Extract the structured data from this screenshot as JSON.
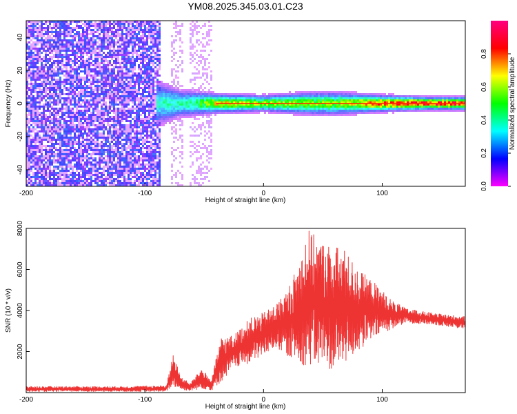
{
  "figure": {
    "title": "YM08.2025.345.03.01.C23"
  },
  "chart_data": [
    {
      "type": "heatmap",
      "title": "",
      "xlabel": "Height of straight line (km)",
      "ylabel": "Frequency (Hz)",
      "xlim": [
        -200,
        170
      ],
      "ylim": [
        -50,
        50
      ],
      "xticks": [
        -200,
        -100,
        0,
        100
      ],
      "yticks": [
        -40,
        -20,
        0,
        20,
        40
      ],
      "colorbar": {
        "label": "Normalized spectral amplitude",
        "range": [
          0,
          1
        ],
        "ticks": [
          0.0,
          0.2,
          0.4,
          0.6,
          0.8
        ],
        "colors": [
          "#ff00ff",
          "#0000ff",
          "#00ffff",
          "#00ff00",
          "#ffff00",
          "#ff0000",
          "#ff0080"
        ]
      },
      "regions": [
        {
          "x_range": [
            -200,
            -86
          ],
          "y_range": [
            -50,
            50
          ],
          "level": 0.15
        },
        {
          "x_range": [
            -78,
            -68
          ],
          "y_range": [
            -50,
            50
          ],
          "level": 0.06
        },
        {
          "x_range": [
            -62,
            -44
          ],
          "y_range": [
            -50,
            50
          ],
          "level": 0.05
        },
        {
          "x_range": [
            -88,
            -78
          ],
          "y_range": [
            -12,
            8
          ],
          "level": 0.35
        },
        {
          "x_range": [
            -40,
            170
          ],
          "y_range": [
            -1,
            1
          ],
          "level": 0.95
        }
      ],
      "ridge_halfwidth_hz": [
        {
          "x": -88,
          "halfwidth": 14
        },
        {
          "x": -70,
          "halfwidth": 9
        },
        {
          "x": -40,
          "halfwidth": 6
        },
        {
          "x": 0,
          "halfwidth": 5
        },
        {
          "x": 40,
          "halfwidth": 7
        },
        {
          "x": 60,
          "halfwidth": 7
        },
        {
          "x": 100,
          "halfwidth": 5
        },
        {
          "x": 140,
          "halfwidth": 4
        },
        {
          "x": 170,
          "halfwidth": 4
        }
      ],
      "ridge_peak_amplitude": [
        {
          "x": -88,
          "value": 0.4
        },
        {
          "x": -60,
          "value": 0.45
        },
        {
          "x": -40,
          "value": 0.7
        },
        {
          "x": 0,
          "value": 0.65
        },
        {
          "x": 60,
          "value": 0.6
        },
        {
          "x": 100,
          "value": 0.85
        },
        {
          "x": 170,
          "value": 0.95
        }
      ]
    },
    {
      "type": "area",
      "title": "",
      "xlabel": "Height of straight line (km)",
      "ylabel": "SNR (10 * v/v)",
      "xlim": [
        -200,
        170
      ],
      "ylim": [
        0,
        8000
      ],
      "xticks": [
        -200,
        -100,
        0,
        100
      ],
      "yticks": [
        2000,
        4000,
        6000,
        8000
      ],
      "series": [
        {
          "color": "#ee3333",
          "envelope": [
            {
              "x": -200,
              "low": 50,
              "high": 300
            },
            {
              "x": -120,
              "low": 50,
              "high": 300
            },
            {
              "x": -82,
              "low": 50,
              "high": 350
            },
            {
              "x": -76,
              "low": 300,
              "high": 1900
            },
            {
              "x": -70,
              "low": 150,
              "high": 800
            },
            {
              "x": -62,
              "low": 80,
              "high": 450
            },
            {
              "x": -52,
              "low": 200,
              "high": 1200
            },
            {
              "x": -44,
              "low": 100,
              "high": 600
            },
            {
              "x": -36,
              "low": 500,
              "high": 2700
            },
            {
              "x": -25,
              "low": 1200,
              "high": 2800
            },
            {
              "x": -12,
              "low": 1400,
              "high": 3600
            },
            {
              "x": 0,
              "low": 1800,
              "high": 3900
            },
            {
              "x": 10,
              "low": 2200,
              "high": 4300
            },
            {
              "x": 20,
              "low": 1800,
              "high": 5000
            },
            {
              "x": 30,
              "low": 1400,
              "high": 6400
            },
            {
              "x": 37,
              "low": 1300,
              "high": 8000
            },
            {
              "x": 48,
              "low": 1200,
              "high": 7400
            },
            {
              "x": 58,
              "low": 1100,
              "high": 7200
            },
            {
              "x": 68,
              "low": 1400,
              "high": 7000
            },
            {
              "x": 80,
              "low": 2000,
              "high": 6000
            },
            {
              "x": 95,
              "low": 2700,
              "high": 5300
            },
            {
              "x": 108,
              "low": 3100,
              "high": 4500
            },
            {
              "x": 120,
              "low": 3400,
              "high": 4100
            },
            {
              "x": 145,
              "low": 3300,
              "high": 3850
            },
            {
              "x": 170,
              "low": 3100,
              "high": 3700
            }
          ]
        }
      ]
    }
  ]
}
